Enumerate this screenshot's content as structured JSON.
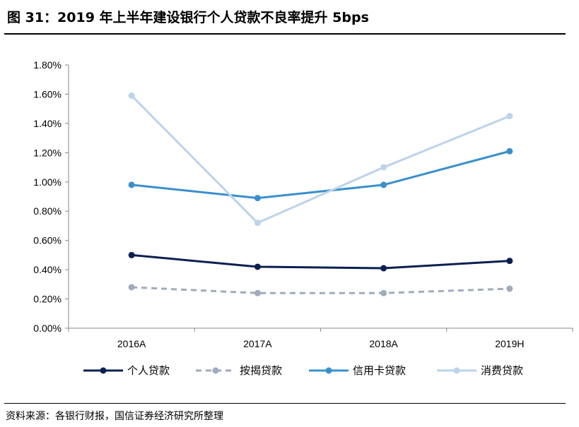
{
  "title": "图 31：2019 年上半年建设银行个人贷款不良率提升 5bps",
  "source": "资料来源：各银行财报，国信证券经济研究所整理",
  "chart_data": {
    "type": "line",
    "categories": [
      "2016A",
      "2017A",
      "2018A",
      "2019H"
    ],
    "ylim": [
      0,
      1.8
    ],
    "y_ticks": [
      "0.00%",
      "0.20%",
      "0.40%",
      "0.60%",
      "0.80%",
      "1.00%",
      "1.20%",
      "1.40%",
      "1.60%",
      "1.80%"
    ],
    "y_unit": "%",
    "grid": false,
    "legend_position": "bottom",
    "series": [
      {
        "name": "个人贷款",
        "values": [
          0.5,
          0.42,
          0.41,
          0.46
        ],
        "color": "#0b2050",
        "dash": false
      },
      {
        "name": "按揭贷款",
        "values": [
          0.28,
          0.24,
          0.24,
          0.27
        ],
        "color": "#a0abbc",
        "dash": true
      },
      {
        "name": "信用卡贷款",
        "values": [
          0.98,
          0.89,
          0.98,
          1.21
        ],
        "color": "#3a8fce",
        "dash": false
      },
      {
        "name": "消费贷款",
        "values": [
          1.59,
          0.72,
          1.1,
          1.45
        ],
        "color": "#bcd3eb",
        "dash": false
      }
    ]
  }
}
